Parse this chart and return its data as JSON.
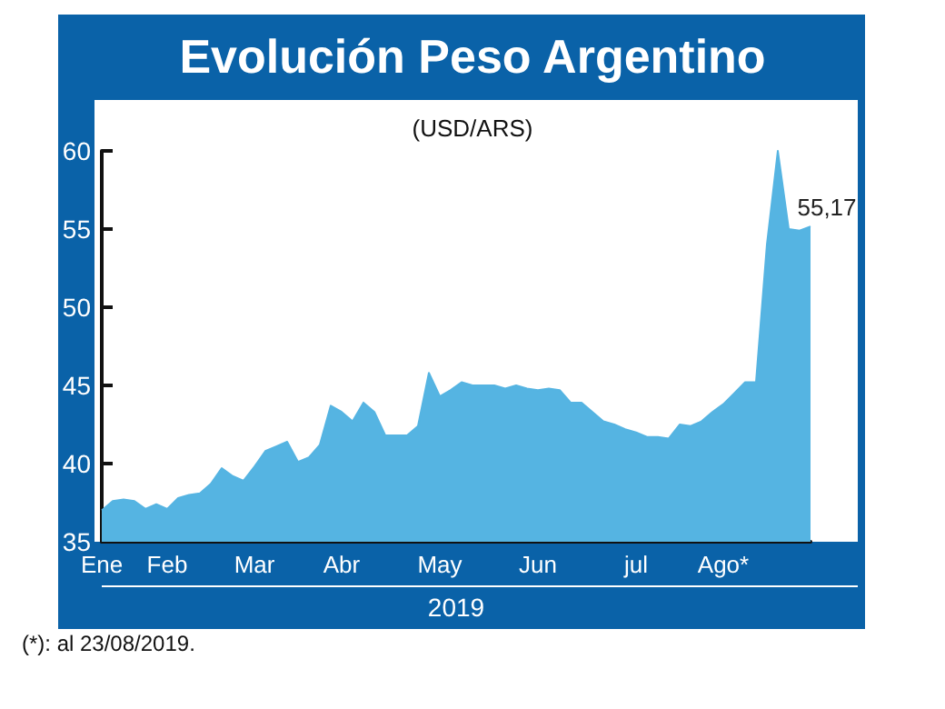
{
  "chart_data": {
    "type": "area",
    "title": "Evolución Peso Argentino",
    "subtitle": "(USD/ARS)",
    "xlabel": "2019",
    "categories": [
      "Ene",
      null,
      null,
      null,
      null,
      null,
      "Feb",
      null,
      null,
      null,
      null,
      null,
      null,
      null,
      "Mar",
      null,
      null,
      null,
      null,
      null,
      null,
      null,
      "Abr",
      null,
      null,
      null,
      null,
      null,
      null,
      null,
      null,
      "May",
      null,
      null,
      null,
      null,
      null,
      null,
      null,
      null,
      "Jun",
      null,
      null,
      null,
      null,
      null,
      null,
      null,
      null,
      "jul",
      null,
      null,
      null,
      null,
      null,
      null,
      null,
      "Ago*",
      null,
      null,
      null,
      null,
      null,
      null,
      null,
      null
    ],
    "series": [
      {
        "color": "#55b4e2",
        "values": [
          37.0,
          37.6,
          37.7,
          37.6,
          37.1,
          37.4,
          37.1,
          37.8,
          38.0,
          38.1,
          38.7,
          39.7,
          39.2,
          38.9,
          39.8,
          40.8,
          41.1,
          41.4,
          40.1,
          40.4,
          41.2,
          43.7,
          43.3,
          42.7,
          43.9,
          43.3,
          41.8,
          41.8,
          41.8,
          42.4,
          45.8,
          44.3,
          44.7,
          45.2,
          45.0,
          45.0,
          45.0,
          44.8,
          45.0,
          44.8,
          44.7,
          44.8,
          44.7,
          43.9,
          43.9,
          43.3,
          42.7,
          42.5,
          42.2,
          42.0,
          41.7,
          41.7,
          41.6,
          42.5,
          42.4,
          42.7,
          43.3,
          43.8,
          44.5,
          45.2,
          45.2,
          54.0,
          60.0,
          55.0,
          54.9,
          55.17
        ],
        "value_labels": [
          null,
          null,
          null,
          null,
          null,
          null,
          null,
          null,
          null,
          null,
          null,
          null,
          null,
          null,
          null,
          null,
          null,
          null,
          null,
          null,
          null,
          null,
          null,
          null,
          null,
          null,
          null,
          null,
          null,
          null,
          null,
          null,
          null,
          null,
          null,
          null,
          null,
          null,
          null,
          null,
          null,
          null,
          null,
          null,
          null,
          null,
          null,
          null,
          null,
          null,
          null,
          null,
          null,
          null,
          null,
          null,
          null,
          null,
          null,
          null,
          null,
          null,
          null,
          null,
          null,
          "55,17"
        ]
      }
    ],
    "ylim": [
      35,
      60
    ],
    "yticks": [
      35,
      40,
      45,
      50,
      55,
      60
    ],
    "grid": false,
    "annotations": [
      "(*): al 23/08/2019."
    ]
  }
}
